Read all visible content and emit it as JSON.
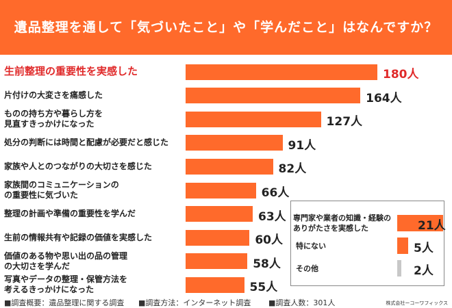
{
  "title": "遺品整理を通して「気づいたこと」や「学んだこと」はなんですか？",
  "colors": {
    "bar": "#ff6a2b",
    "highlight_text": "#e02a2a",
    "other_bar": "#c8c8c8",
    "header": "#ff6a2b"
  },
  "chart_data": {
    "type": "bar",
    "orientation": "horizontal",
    "unit": "人",
    "categories": [
      "生前整理の重要性を実感した",
      "片付けの大変さを痛感した",
      "ものの持ち方や暮らし方を\n見直すきっかけになった",
      "処分の判断には時間と配慮が必要だと感じた",
      "家族や人とのつながりの大切さを感じた",
      "家族間のコミュニケーションの\nの重要性に気づいた",
      "整理の計画や準備の重要性を学んだ",
      "生前の情報共有や記録の価値を実感した",
      "価値のある物や思い出の品の管理\nの大切さを学んだ",
      "写真やデータの整理・保管方法を\n考えるきっかけになった"
    ],
    "values": [
      180,
      164,
      127,
      91,
      82,
      66,
      63,
      60,
      58,
      55
    ],
    "value_labels": [
      "180人",
      "164人",
      "127人",
      "91人",
      "82人",
      "66人",
      "63人",
      "60人",
      "58人",
      "55人"
    ],
    "inset": {
      "categories": [
        "専門家や業者の知識・経験の\nありがたさを実感した",
        "特にない",
        "その他"
      ],
      "values": [
        21,
        5,
        2
      ],
      "value_labels": [
        "21人",
        "5人",
        "2人"
      ]
    }
  },
  "footer": {
    "overview": "■調査概要：遺品整理に関する調査",
    "method": "■調査方法：インターネット調査",
    "count": "■調査人数：301人",
    "company": "株式会社ーコーワフィックス"
  }
}
